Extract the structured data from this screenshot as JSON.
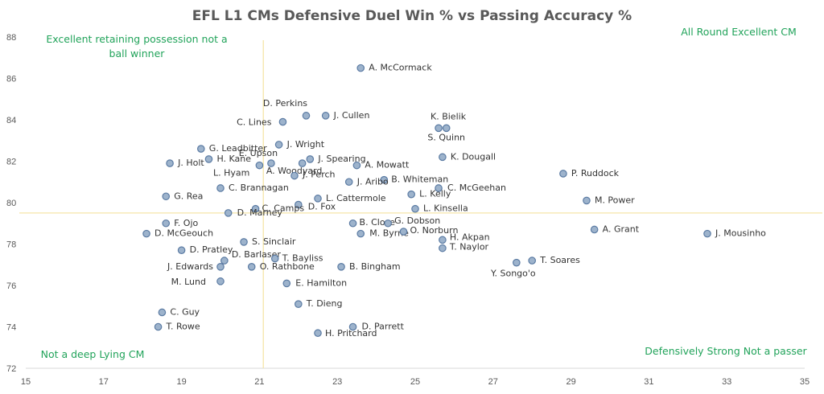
{
  "chart_data": {
    "type": "scatter",
    "title": "EFL L1 CMs Defensive Duel Win % vs Passing Accuracy %",
    "xlabel": "",
    "ylabel": "",
    "xlim": [
      15,
      35
    ],
    "ylim": [
      72,
      88
    ],
    "xticks": [
      15,
      17,
      19,
      21,
      23,
      25,
      27,
      29,
      31,
      33,
      35
    ],
    "yticks": [
      72,
      74,
      76,
      78,
      80,
      82,
      84,
      86,
      88
    ],
    "grid": false,
    "reference_lines": {
      "x": 21.1,
      "y": 79.5
    },
    "quadrant_labels": {
      "top_left": [
        "Excellent retaining possession not a",
        "ball winner"
      ],
      "top_right": "All Round Excellent CM",
      "bottom_left": "Not a deep Lying CM",
      "bottom_right": "Defensively Strong Not a passer"
    },
    "points": [
      {
        "label": "A. McCormack",
        "x": 23.6,
        "y": 86.5
      },
      {
        "label": "D. Perkins",
        "x": 22.2,
        "y": 84.2
      },
      {
        "label": "J. Cullen",
        "x": 22.7,
        "y": 84.2
      },
      {
        "label": "C. Lines",
        "x": 21.6,
        "y": 83.9
      },
      {
        "label": "K. Bielik",
        "x": 25.6,
        "y": 83.6
      },
      {
        "label": "S. Quinn",
        "x": 25.8,
        "y": 83.6
      },
      {
        "label": "J. Wright",
        "x": 21.5,
        "y": 82.8
      },
      {
        "label": "G. Leadbitter",
        "x": 19.5,
        "y": 82.6
      },
      {
        "label": "K. Dougall",
        "x": 25.7,
        "y": 82.2
      },
      {
        "label": "H. Kane",
        "x": 19.7,
        "y": 82.1
      },
      {
        "label": "E. Upson",
        "x": 21.3,
        "y": 81.9
      },
      {
        "label": "J. Spearing",
        "x": 22.3,
        "y": 82.1
      },
      {
        "label": "J. Holt",
        "x": 18.7,
        "y": 81.9
      },
      {
        "label": "L. Hyam",
        "x": 21.0,
        "y": 81.8
      },
      {
        "label": "A. Woodyard",
        "x": 22.1,
        "y": 81.9
      },
      {
        "label": "A. Mowatt",
        "x": 23.5,
        "y": 81.8
      },
      {
        "label": "P. Ruddock",
        "x": 28.8,
        "y": 81.4
      },
      {
        "label": "J. Perch",
        "x": 21.9,
        "y": 81.3
      },
      {
        "label": "B. Whiteman",
        "x": 24.2,
        "y": 81.1
      },
      {
        "label": "J. Aribo",
        "x": 23.3,
        "y": 81.0
      },
      {
        "label": "C. Brannagan",
        "x": 20.0,
        "y": 80.7
      },
      {
        "label": "C. McGeehan",
        "x": 25.6,
        "y": 80.7
      },
      {
        "label": "L. Kelly",
        "x": 24.9,
        "y": 80.4
      },
      {
        "label": "G. Rea",
        "x": 18.6,
        "y": 80.3
      },
      {
        "label": "L. Cattermole",
        "x": 22.5,
        "y": 80.2
      },
      {
        "label": "M. Power",
        "x": 29.4,
        "y": 80.1
      },
      {
        "label": "D. Fox",
        "x": 22.0,
        "y": 79.9
      },
      {
        "label": "C. Camps",
        "x": 20.9,
        "y": 79.7
      },
      {
        "label": "L. Kinsella",
        "x": 25.0,
        "y": 79.7
      },
      {
        "label": "D. Marney",
        "x": 20.2,
        "y": 79.5
      },
      {
        "label": "F. Ojo",
        "x": 18.6,
        "y": 79.0
      },
      {
        "label": "B. Close",
        "x": 23.4,
        "y": 79.0
      },
      {
        "label": "G. Dobson",
        "x": 24.3,
        "y": 79.0
      },
      {
        "label": "A. Grant",
        "x": 29.6,
        "y": 78.7
      },
      {
        "label": "D. McGeouch",
        "x": 18.1,
        "y": 78.5
      },
      {
        "label": "M. Byrne",
        "x": 23.6,
        "y": 78.5
      },
      {
        "label": "O. Norburn",
        "x": 24.7,
        "y": 78.6
      },
      {
        "label": "J. Mousinho",
        "x": 32.5,
        "y": 78.5
      },
      {
        "label": "H. Akpan",
        "x": 25.7,
        "y": 78.2
      },
      {
        "label": "S. Sinclair",
        "x": 20.6,
        "y": 78.1
      },
      {
        "label": "T. Naylor",
        "x": 25.7,
        "y": 77.8
      },
      {
        "label": "D. Pratley",
        "x": 19.0,
        "y": 77.7
      },
      {
        "label": "D. Barlaser",
        "x": 20.1,
        "y": 77.2
      },
      {
        "label": "T. Bayliss",
        "x": 21.4,
        "y": 77.3
      },
      {
        "label": "T. Soares",
        "x": 28.0,
        "y": 77.2
      },
      {
        "label": "Y. Songo'o",
        "x": 27.6,
        "y": 77.1
      },
      {
        "label": "J. Edwards",
        "x": 20.0,
        "y": 76.9
      },
      {
        "label": "O. Rathbone",
        "x": 20.8,
        "y": 76.9
      },
      {
        "label": "B. Bingham",
        "x": 23.1,
        "y": 76.9
      },
      {
        "label": "M. Lund",
        "x": 20.0,
        "y": 76.2
      },
      {
        "label": "E. Hamilton",
        "x": 21.7,
        "y": 76.1
      },
      {
        "label": "T. Dieng",
        "x": 22.0,
        "y": 75.1
      },
      {
        "label": "C. Guy",
        "x": 18.5,
        "y": 74.7
      },
      {
        "label": "T. Rowe",
        "x": 18.4,
        "y": 74.0
      },
      {
        "label": "D. Parrett",
        "x": 23.4,
        "y": 74.0
      },
      {
        "label": "H. Pritchard",
        "x": 22.5,
        "y": 73.7
      }
    ]
  }
}
